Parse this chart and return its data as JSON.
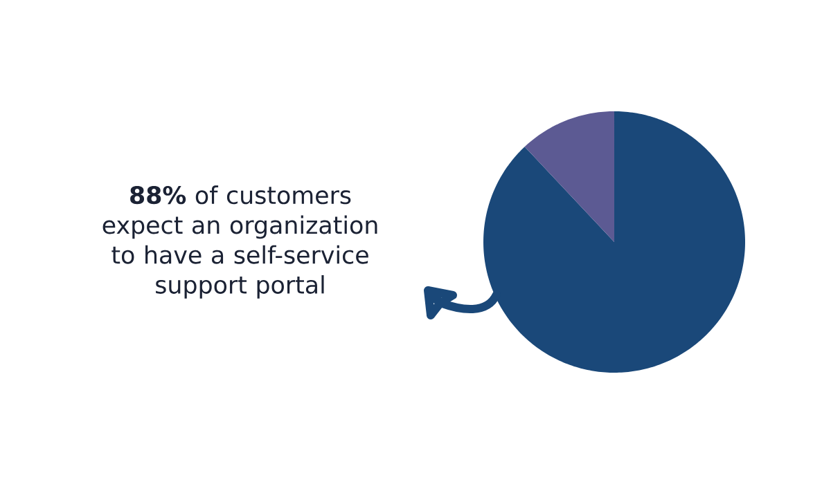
{
  "chart_data": {
    "type": "pie",
    "categories": [
      null,
      null
    ],
    "values": [
      88,
      12
    ],
    "colors": [
      "#1a4879",
      "#5c5a93"
    ],
    "annotations": [
      "**88%** of customers expect an organization to have a self-service support portal"
    ]
  }
}
